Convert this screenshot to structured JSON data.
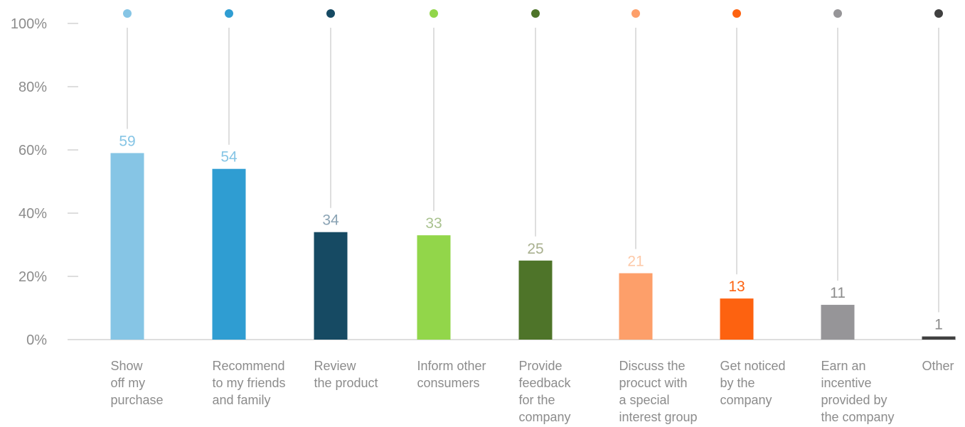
{
  "chart_data": {
    "type": "bar",
    "categories": [
      [
        "Show",
        "off my",
        "purchase"
      ],
      [
        "Recommend",
        "to my friends",
        "and family"
      ],
      [
        "Review",
        "the product"
      ],
      [
        "Inform other",
        "consumers"
      ],
      [
        "Provide",
        "feedback",
        "for the",
        "company"
      ],
      [
        "Discuss the",
        "procuct with",
        "a special",
        "interest group"
      ],
      [
        "Get noticed",
        "by the",
        "company"
      ],
      [
        "Earn an",
        "incentive",
        "provided by",
        "the company"
      ],
      [
        "Other"
      ]
    ],
    "values": [
      59,
      54,
      34,
      33,
      25,
      21,
      13,
      11,
      1
    ],
    "value_labels": [
      "59",
      "54",
      "34",
      "33",
      "25",
      "21",
      "13",
      "11",
      "1"
    ],
    "ylim": [
      0,
      100
    ],
    "yticks": [
      0,
      20,
      40,
      60,
      80,
      100
    ],
    "ytick_labels": [
      "0%",
      "20%",
      "40%",
      "60%",
      "80%",
      "100%"
    ],
    "bar_colors": [
      "#86c5e5",
      "#2f9dd2",
      "#164a63",
      "#92d64a",
      "#4e7429",
      "#fd9f6a",
      "#fd6210",
      "#969598",
      "#404040"
    ],
    "label_colors": [
      "#86c5e5",
      "#86c5e5",
      "#8aa3b4",
      "#a9c28f",
      "#a9b08f",
      "#fdc9a8",
      "#fd6210",
      "#8c8c8c",
      "#8c8c8c"
    ],
    "dot_colors": [
      "#86c5e5",
      "#2f9dd2",
      "#164a63",
      "#92d64a",
      "#4e7429",
      "#fd9f6a",
      "#fd6210",
      "#969598",
      "#404040"
    ],
    "grid": false
  }
}
